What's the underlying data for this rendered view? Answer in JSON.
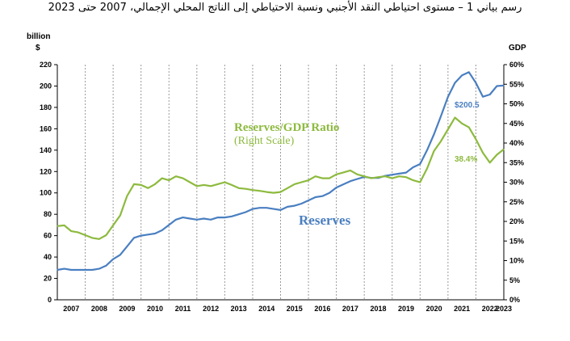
{
  "title": "رسم بياني 1 – مستوى احتياطي النقد الأجنبي ونسبة الاحتياطي إلى الناتج المحلي الإجمالي، 2007 حتى 2023",
  "chart_data": {
    "type": "line",
    "left_axis_title": "billion",
    "left_axis_unit": "$",
    "right_axis_title": "GDP",
    "ylim_left": [
      0,
      220
    ],
    "ylim_right": [
      0,
      60
    ],
    "y_ticks_left": [
      "0",
      "20",
      "40",
      "60",
      "80",
      "100",
      "120",
      "140",
      "160",
      "180",
      "200",
      "220"
    ],
    "y_ticks_right": [
      "0%",
      "5%",
      "10%",
      "15%",
      "20%",
      "25%",
      "30%",
      "35%",
      "40%",
      "45%",
      "50%",
      "55%",
      "60%"
    ],
    "x_ticks": [
      "2007",
      "2008",
      "2009",
      "2010",
      "2011",
      "2012",
      "2013",
      "2014",
      "2015",
      "2016",
      "2017",
      "2018",
      "2019",
      "2020",
      "2021",
      "2022",
      "2023"
    ],
    "vertical_gridlines": true,
    "series": [
      {
        "name": "Reserves",
        "axis": "left",
        "color": "#4a7fc1",
        "points": [
          [
            2007.0,
            28
          ],
          [
            2007.25,
            29
          ],
          [
            2007.5,
            28
          ],
          [
            2007.75,
            28
          ],
          [
            2008.0,
            28
          ],
          [
            2008.25,
            28
          ],
          [
            2008.5,
            29
          ],
          [
            2008.75,
            32
          ],
          [
            2009.0,
            38
          ],
          [
            2009.25,
            42
          ],
          [
            2009.5,
            50
          ],
          [
            2009.75,
            58
          ],
          [
            2010.0,
            60
          ],
          [
            2010.25,
            61
          ],
          [
            2010.5,
            62
          ],
          [
            2010.75,
            65
          ],
          [
            2011.0,
            70
          ],
          [
            2011.25,
            75
          ],
          [
            2011.5,
            77
          ],
          [
            2011.75,
            76
          ],
          [
            2012.0,
            75
          ],
          [
            2012.25,
            76
          ],
          [
            2012.5,
            75
          ],
          [
            2012.75,
            77
          ],
          [
            2013.0,
            77
          ],
          [
            2013.25,
            78
          ],
          [
            2013.5,
            80
          ],
          [
            2013.75,
            82
          ],
          [
            2014.0,
            85
          ],
          [
            2014.25,
            86
          ],
          [
            2014.5,
            86
          ],
          [
            2014.75,
            85
          ],
          [
            2015.0,
            84
          ],
          [
            2015.25,
            87
          ],
          [
            2015.5,
            88
          ],
          [
            2015.75,
            90
          ],
          [
            2016.0,
            93
          ],
          [
            2016.25,
            96
          ],
          [
            2016.5,
            97
          ],
          [
            2016.75,
            100
          ],
          [
            2017.0,
            105
          ],
          [
            2017.25,
            108
          ],
          [
            2017.5,
            111
          ],
          [
            2017.75,
            113
          ],
          [
            2018.0,
            115
          ],
          [
            2018.25,
            114
          ],
          [
            2018.5,
            114
          ],
          [
            2018.75,
            116
          ],
          [
            2019.0,
            117
          ],
          [
            2019.25,
            118
          ],
          [
            2019.5,
            119
          ],
          [
            2019.75,
            124
          ],
          [
            2020.0,
            127
          ],
          [
            2020.25,
            140
          ],
          [
            2020.5,
            155
          ],
          [
            2020.75,
            172
          ],
          [
            2021.0,
            190
          ],
          [
            2021.25,
            203
          ],
          [
            2021.5,
            210
          ],
          [
            2021.75,
            213
          ],
          [
            2022.0,
            203
          ],
          [
            2022.25,
            190
          ],
          [
            2022.5,
            192
          ],
          [
            2022.75,
            200
          ],
          [
            2023.0,
            200.5
          ]
        ]
      },
      {
        "name": "Reserves/GDP Ratio",
        "axis": "right",
        "color": "#8dba3e",
        "points": [
          [
            2007.0,
            18.8
          ],
          [
            2007.25,
            19.0
          ],
          [
            2007.5,
            17.5
          ],
          [
            2007.75,
            17.2
          ],
          [
            2008.0,
            16.5
          ],
          [
            2008.25,
            15.8
          ],
          [
            2008.5,
            15.5
          ],
          [
            2008.75,
            16.5
          ],
          [
            2009.0,
            19.0
          ],
          [
            2009.25,
            21.5
          ],
          [
            2009.5,
            26.5
          ],
          [
            2009.75,
            29.5
          ],
          [
            2010.0,
            29.3
          ],
          [
            2010.25,
            28.5
          ],
          [
            2010.5,
            29.5
          ],
          [
            2010.75,
            31.0
          ],
          [
            2011.0,
            30.5
          ],
          [
            2011.25,
            31.5
          ],
          [
            2011.5,
            31.0
          ],
          [
            2011.75,
            30.0
          ],
          [
            2012.0,
            29.0
          ],
          [
            2012.25,
            29.3
          ],
          [
            2012.5,
            29.0
          ],
          [
            2012.75,
            29.5
          ],
          [
            2013.0,
            30.0
          ],
          [
            2013.25,
            29.3
          ],
          [
            2013.5,
            28.5
          ],
          [
            2013.75,
            28.3
          ],
          [
            2014.0,
            28.0
          ],
          [
            2014.25,
            27.8
          ],
          [
            2014.5,
            27.5
          ],
          [
            2014.75,
            27.3
          ],
          [
            2015.0,
            27.5
          ],
          [
            2015.25,
            28.5
          ],
          [
            2015.5,
            29.5
          ],
          [
            2015.75,
            30.0
          ],
          [
            2016.0,
            30.5
          ],
          [
            2016.25,
            31.5
          ],
          [
            2016.5,
            31.0
          ],
          [
            2016.75,
            31.0
          ],
          [
            2017.0,
            32.0
          ],
          [
            2017.25,
            32.5
          ],
          [
            2017.5,
            33.0
          ],
          [
            2017.75,
            32.0
          ],
          [
            2018.0,
            31.5
          ],
          [
            2018.25,
            31.0
          ],
          [
            2018.5,
            31.3
          ],
          [
            2018.75,
            31.5
          ],
          [
            2019.0,
            31.0
          ],
          [
            2019.25,
            31.5
          ],
          [
            2019.5,
            31.3
          ],
          [
            2019.75,
            30.5
          ],
          [
            2020.0,
            30.0
          ],
          [
            2020.25,
            33.5
          ],
          [
            2020.5,
            38.0
          ],
          [
            2020.75,
            40.5
          ],
          [
            2021.0,
            43.5
          ],
          [
            2021.25,
            46.5
          ],
          [
            2021.5,
            45.0
          ],
          [
            2021.75,
            44.0
          ],
          [
            2022.0,
            41.0
          ],
          [
            2022.25,
            37.5
          ],
          [
            2022.5,
            35.0
          ],
          [
            2022.75,
            37.0
          ],
          [
            2023.0,
            38.4
          ]
        ]
      }
    ],
    "annotations": {
      "ratio_label": "Reserves/GDP Ratio",
      "ratio_sublabel": "(Right Scale)",
      "reserves_label": "Reserves",
      "reserves_last_value": "$200.5",
      "ratio_last_value": "38.4%"
    }
  }
}
